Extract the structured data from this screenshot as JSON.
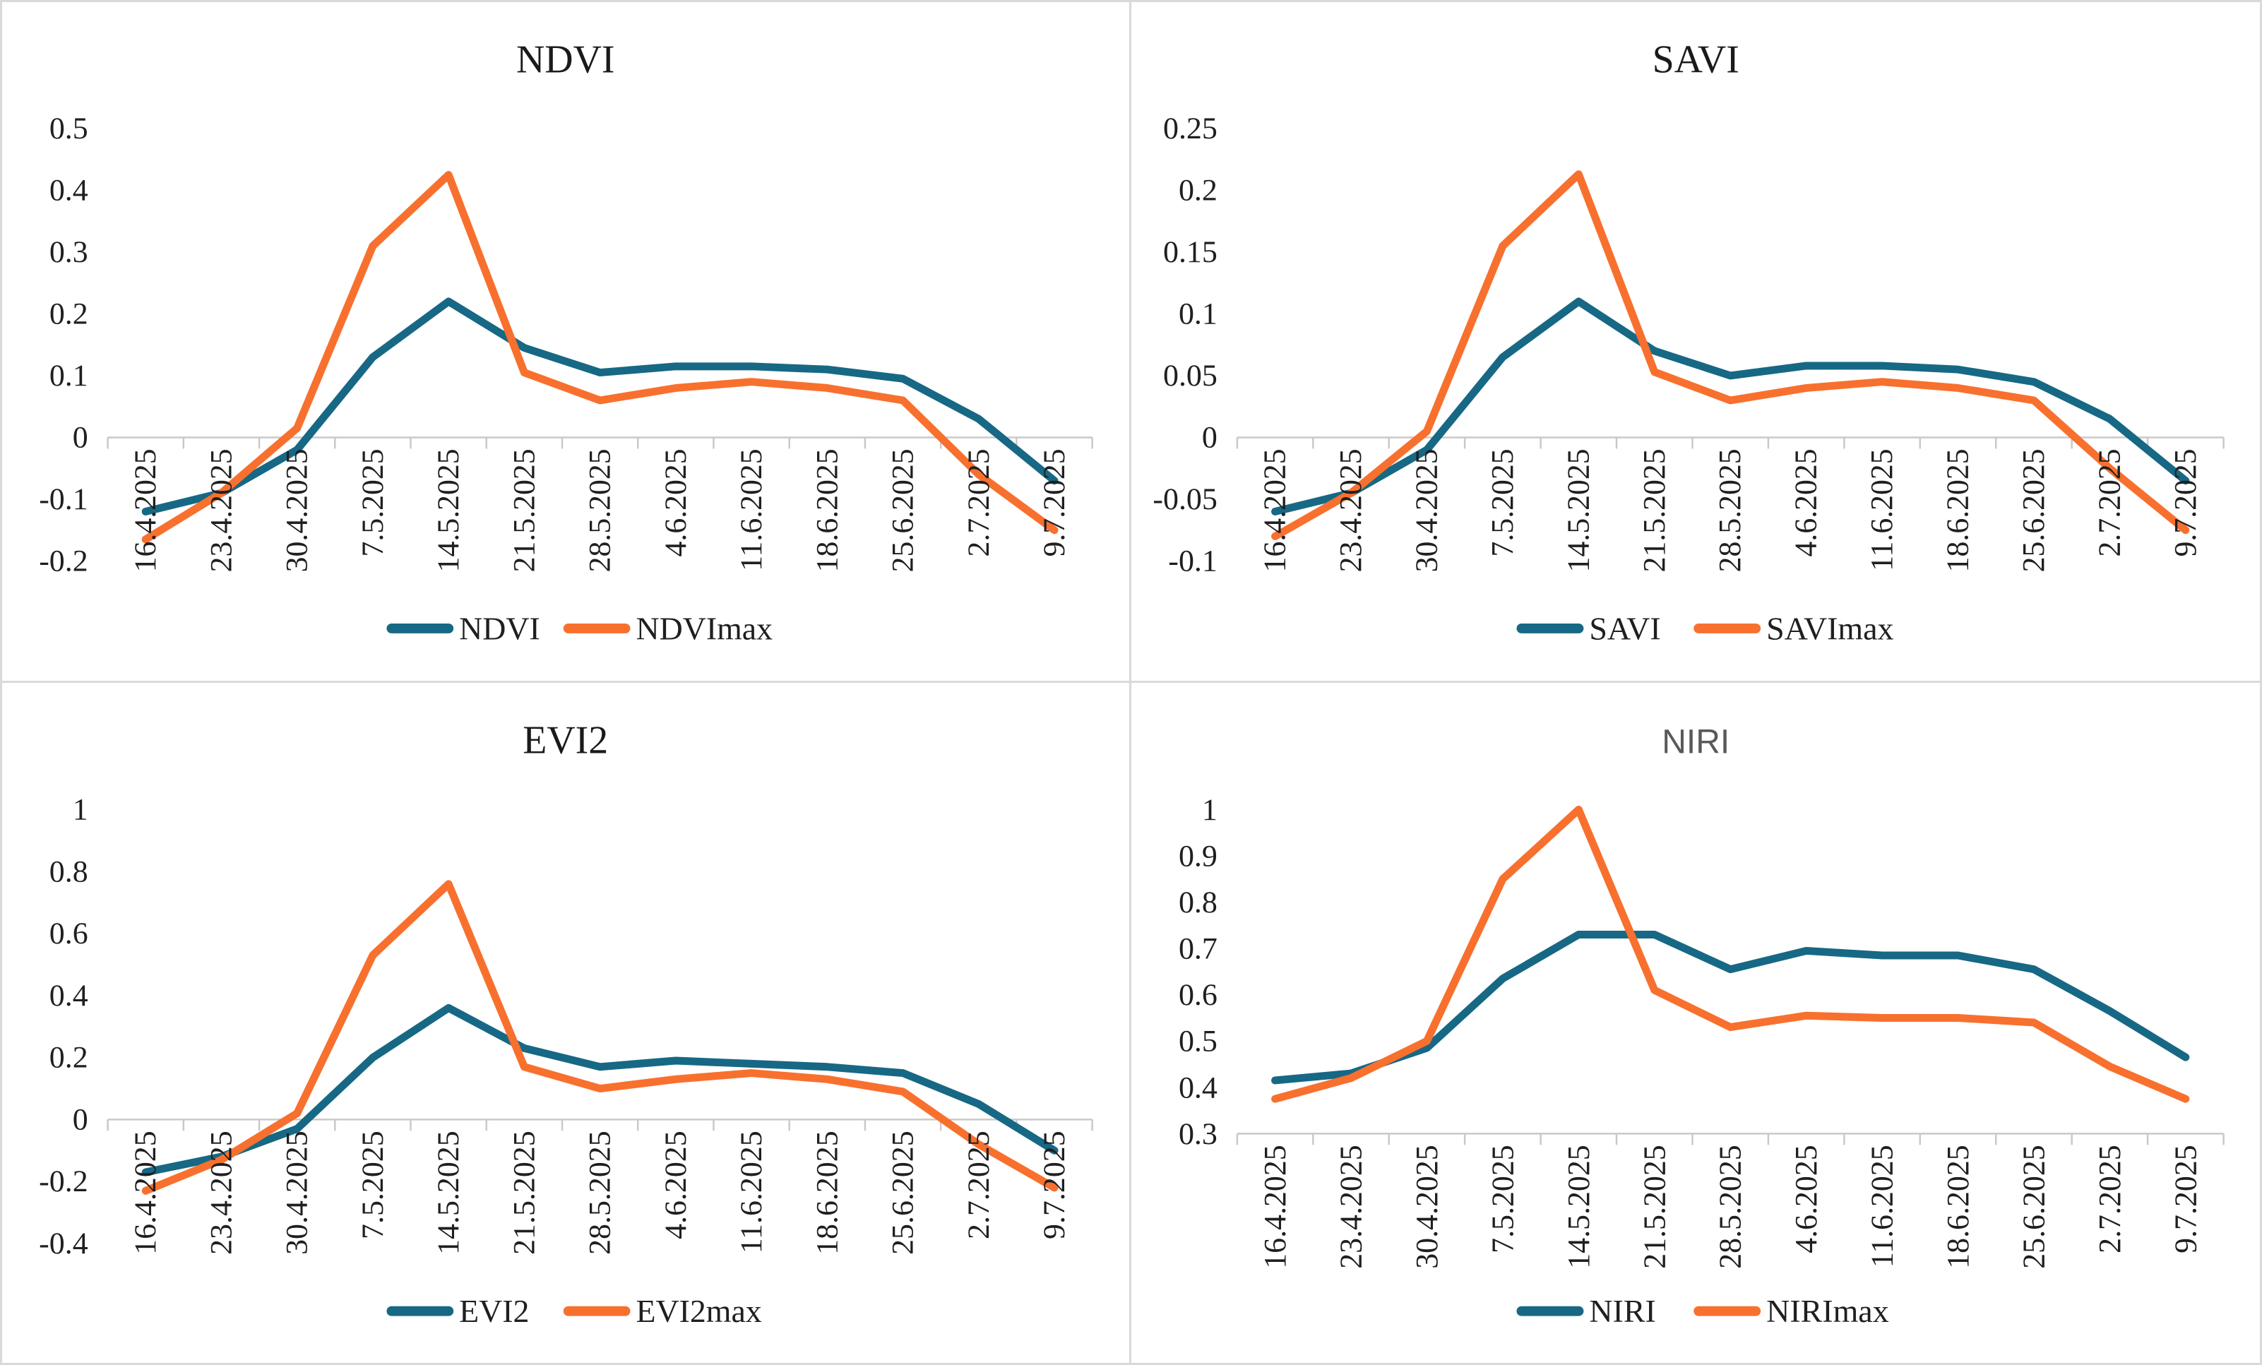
{
  "colors": {
    "series_primary": "#176884",
    "series_max": "#F8702E",
    "axis_line": "#C9C9C9",
    "tick_text": "#1F1F1F",
    "title_black": "#1A1A1A",
    "title_gray": "#595959",
    "background": "#FFFFFF"
  },
  "chart_data": [
    {
      "type": "line",
      "title": "NDVI",
      "title_style": "serif-black",
      "grid": false,
      "legend_position": "bottom",
      "categories": [
        "16.4.2025",
        "23.4.2025",
        "30.4.2025",
        "7.5.2025",
        "14.5.2025",
        "21.5.2025",
        "28.5.2025",
        "4.6.2025",
        "11.6.2025",
        "18.6.2025",
        "25.6.2025",
        "2.7.2025",
        "9.7.2025"
      ],
      "ylim": [
        -0.2,
        0.5
      ],
      "y_ticks": [
        "0.5",
        "0.4",
        "0.3",
        "0.2",
        "0.1",
        "0",
        "-0.1",
        "-0.2"
      ],
      "axis_value": 0,
      "series": [
        {
          "name": "NDVI",
          "color": "#176884",
          "values": [
            -0.12,
            -0.09,
            -0.02,
            0.13,
            0.22,
            0.145,
            0.105,
            0.115,
            0.115,
            0.11,
            0.095,
            0.03,
            -0.07
          ]
        },
        {
          "name": "NDVImax",
          "color": "#F8702E",
          "values": [
            -0.165,
            -0.09,
            0.015,
            0.31,
            0.425,
            0.105,
            0.06,
            0.08,
            0.09,
            0.08,
            0.06,
            -0.06,
            -0.15
          ]
        }
      ]
    },
    {
      "type": "line",
      "title": "SAVI",
      "title_style": "serif-black",
      "grid": false,
      "legend_position": "bottom",
      "categories": [
        "16.4.2025",
        "23.4.2025",
        "30.4.2025",
        "7.5.2025",
        "14.5.2025",
        "21.5.2025",
        "28.5.2025",
        "4.6.2025",
        "11.6.2025",
        "18.6.2025",
        "25.6.2025",
        "2.7.2025",
        "9.7.2025"
      ],
      "ylim": [
        -0.1,
        0.25
      ],
      "y_ticks": [
        "0.25",
        "0.2",
        "0.15",
        "0.1",
        "0.05",
        "0",
        "-0.05",
        "-0.1"
      ],
      "axis_value": 0,
      "series": [
        {
          "name": "SAVI",
          "color": "#176884",
          "values": [
            -0.06,
            -0.045,
            -0.01,
            0.065,
            0.11,
            0.07,
            0.05,
            0.058,
            0.058,
            0.055,
            0.045,
            0.015,
            -0.035
          ]
        },
        {
          "name": "SAVImax",
          "color": "#F8702E",
          "values": [
            -0.08,
            -0.045,
            0.005,
            0.155,
            0.213,
            0.053,
            0.03,
            0.04,
            0.045,
            0.04,
            0.03,
            -0.025,
            -0.075
          ]
        }
      ]
    },
    {
      "type": "line",
      "title": "EVI2",
      "title_style": "serif-black",
      "grid": false,
      "legend_position": "bottom",
      "categories": [
        "16.4.2025",
        "23.4.2025",
        "30.4.2025",
        "7.5.2025",
        "14.5.2025",
        "21.5.2025",
        "28.5.2025",
        "4.6.2025",
        "11.6.2025",
        "18.6.2025",
        "25.6.2025",
        "2.7.2025",
        "9.7.2025"
      ],
      "ylim": [
        -0.4,
        1.0
      ],
      "y_ticks": [
        "1",
        "0.8",
        "0.6",
        "0.4",
        "0.2",
        "0",
        "-0.2",
        "-0.4"
      ],
      "axis_value": 0,
      "series": [
        {
          "name": "EVI2",
          "color": "#176884",
          "values": [
            -0.17,
            -0.12,
            -0.03,
            0.2,
            0.36,
            0.23,
            0.17,
            0.19,
            0.18,
            0.17,
            0.15,
            0.05,
            -0.1
          ]
        },
        {
          "name": "EVI2max",
          "color": "#F8702E",
          "values": [
            -0.23,
            -0.13,
            0.02,
            0.53,
            0.76,
            0.17,
            0.1,
            0.13,
            0.15,
            0.13,
            0.09,
            -0.08,
            -0.22
          ]
        }
      ]
    },
    {
      "type": "line",
      "title": "NIRI",
      "title_style": "sans-gray",
      "grid": false,
      "legend_position": "bottom",
      "categories": [
        "16.4.2025",
        "23.4.2025",
        "30.4.2025",
        "7.5.2025",
        "14.5.2025",
        "21.5.2025",
        "28.5.2025",
        "4.6.2025",
        "11.6.2025",
        "18.6.2025",
        "25.6.2025",
        "2.7.2025",
        "9.7.2025"
      ],
      "ylim": [
        0.3,
        1.0
      ],
      "y_ticks": [
        "1",
        "0.9",
        "0.8",
        "0.7",
        "0.6",
        "0.5",
        "0.4",
        "0.3"
      ],
      "axis_value": 0.3,
      "series": [
        {
          "name": "NIRI",
          "color": "#176884",
          "values": [
            0.415,
            0.43,
            0.485,
            0.635,
            0.73,
            0.73,
            0.655,
            0.695,
            0.685,
            0.685,
            0.655,
            0.565,
            0.465
          ]
        },
        {
          "name": "NIRImax",
          "color": "#F8702E",
          "values": [
            0.375,
            0.42,
            0.5,
            0.85,
            1.0,
            0.61,
            0.53,
            0.555,
            0.55,
            0.55,
            0.54,
            0.445,
            0.375
          ]
        }
      ]
    }
  ]
}
